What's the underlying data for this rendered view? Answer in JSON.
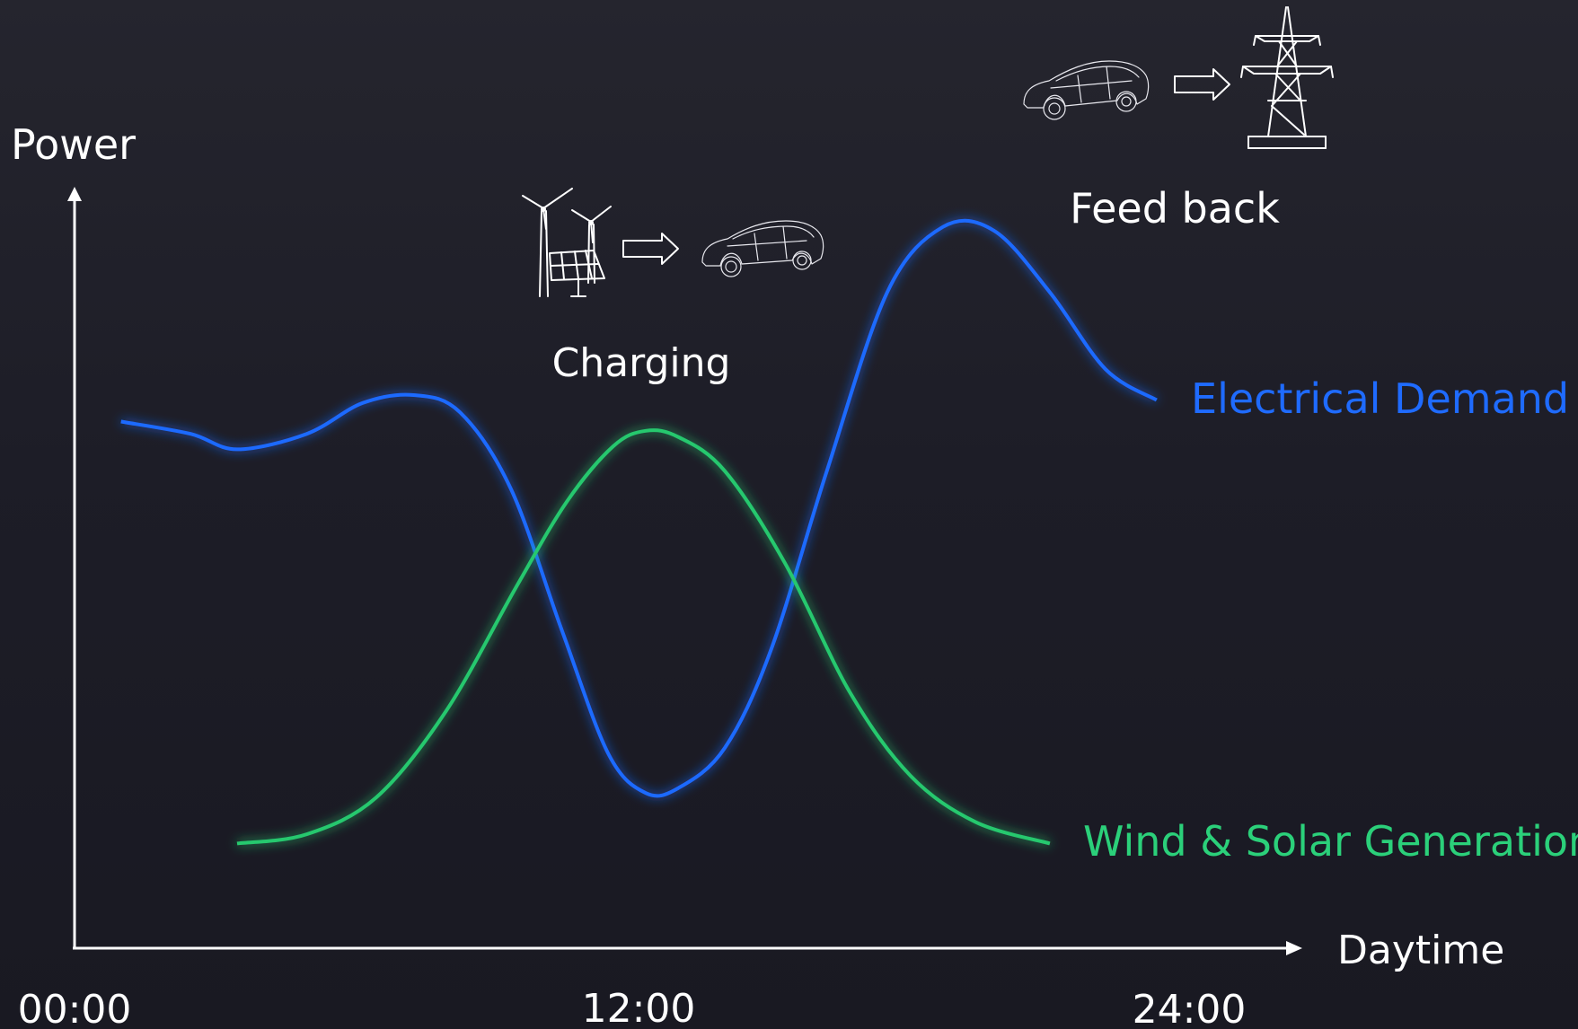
{
  "chart_data": {
    "type": "line",
    "ylabel": "Power",
    "xlabel": "Daytime",
    "x_ticks": [
      "00:00",
      "12:00",
      "24:00"
    ],
    "x_tick_hours": [
      0,
      12,
      24
    ],
    "x_range": [
      0,
      24
    ],
    "y_range": [
      0,
      100
    ],
    "grid": false,
    "legend_placement": "inline-right",
    "series": [
      {
        "name": "Electrical Demand",
        "color": "#1f6bff",
        "glow": "#2f7bff",
        "points": [
          [
            1.0,
            68
          ],
          [
            2.5,
            66
          ],
          [
            3.5,
            63.5
          ],
          [
            5.0,
            66
          ],
          [
            6.2,
            71
          ],
          [
            7.3,
            72.3
          ],
          [
            8.3,
            69.5
          ],
          [
            9.4,
            57
          ],
          [
            10.5,
            34
          ],
          [
            11.5,
            14
          ],
          [
            12.3,
            7.7
          ],
          [
            13.0,
            8.5
          ],
          [
            14.0,
            15
          ],
          [
            15.0,
            31
          ],
          [
            16.2,
            60
          ],
          [
            17.5,
            89
          ],
          [
            18.7,
            99.6
          ],
          [
            19.8,
            99
          ],
          [
            21.0,
            89
          ],
          [
            22.2,
            76.5
          ],
          [
            23.3,
            71.5
          ]
        ]
      },
      {
        "name": "Wind & Solar Generation",
        "color": "#27c86e",
        "glow": "#1fd070",
        "points": [
          [
            3.5,
            -0.5
          ],
          [
            5.0,
            1
          ],
          [
            6.5,
            7
          ],
          [
            8.0,
            21
          ],
          [
            9.5,
            41
          ],
          [
            10.6,
            55
          ],
          [
            11.6,
            64
          ],
          [
            12.3,
            66.5
          ],
          [
            13.0,
            65.5
          ],
          [
            14.0,
            60
          ],
          [
            15.3,
            45
          ],
          [
            16.7,
            24
          ],
          [
            18.0,
            10.5
          ],
          [
            19.4,
            3
          ],
          [
            21.0,
            -0.5
          ]
        ]
      }
    ],
    "annotations": {
      "charging": {
        "label": "Charging",
        "icons": [
          "wind-turbines-solar-panel-icon",
          "arrow-right-icon",
          "car-icon"
        ]
      },
      "feed_back": {
        "label": "Feed back",
        "icons": [
          "car-icon",
          "arrow-right-icon",
          "power-pylon-icon"
        ]
      }
    },
    "series_label_colors": {
      "Electrical Demand": "#1f6bff",
      "Wind & Solar Generation": "#2bd07a"
    }
  }
}
